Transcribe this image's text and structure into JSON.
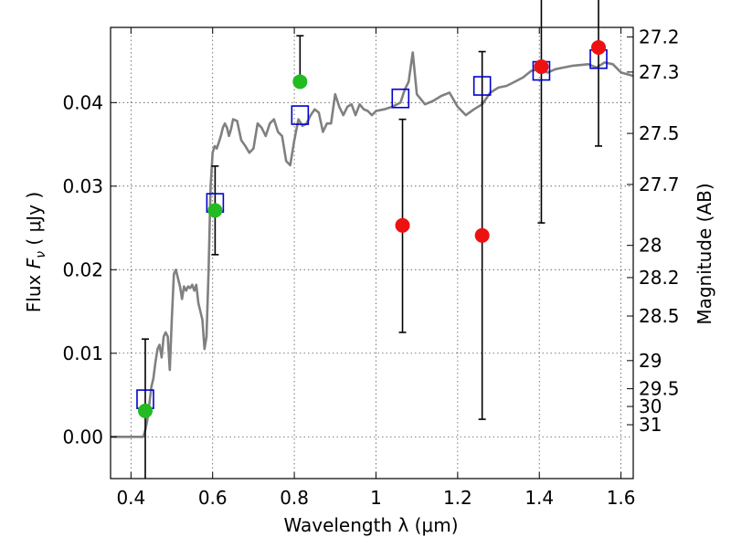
{
  "chart_data": {
    "type": "scatter",
    "xlabel": "Wavelength  λ (μm)",
    "ylabel_left_text": "Flux ",
    "ylabel_left_symbol": "F",
    "ylabel_left_sub": "ν",
    "ylabel_left_unit": "  ( μJy )",
    "ylabel_right": "Magnitude (AB)",
    "xlim": [
      0.35,
      1.63
    ],
    "ylim": [
      -0.005,
      0.049
    ],
    "grid": true,
    "x_ticks": [
      {
        "value": 0.4,
        "label": "0.4"
      },
      {
        "value": 0.6,
        "label": "0.6"
      },
      {
        "value": 0.8,
        "label": "0.8"
      },
      {
        "value": 1.0,
        "label": "1"
      },
      {
        "value": 1.2,
        "label": "1.2"
      },
      {
        "value": 1.4,
        "label": "1.4"
      },
      {
        "value": 1.6,
        "label": "1.6"
      }
    ],
    "y_ticks": [
      {
        "value": 0.0,
        "label": "0.00"
      },
      {
        "value": 0.01,
        "label": "0.01"
      },
      {
        "value": 0.02,
        "label": "0.02"
      },
      {
        "value": 0.03,
        "label": "0.03"
      },
      {
        "value": 0.04,
        "label": "0.04"
      }
    ],
    "mag_ticks": [
      {
        "mag": 27.2,
        "label": "27.2"
      },
      {
        "mag": 27.3,
        "label": "27.3"
      },
      {
        "mag": 27.5,
        "label": "27.5"
      },
      {
        "mag": 27.7,
        "label": "27.7"
      },
      {
        "mag": 28.0,
        "label": "28"
      },
      {
        "mag": 28.2,
        "label": "28.2"
      },
      {
        "mag": 28.5,
        "label": "28.5"
      },
      {
        "mag": 29.0,
        "label": "29"
      },
      {
        "mag": 29.5,
        "label": "29.5"
      },
      {
        "mag": 30.0,
        "label": "30"
      },
      {
        "mag": 31.0,
        "label": "31"
      }
    ],
    "colors": {
      "spectrum": "#808080",
      "model_box": "#0000cc",
      "green_point": "#22bb22",
      "red_point": "#ee1111",
      "error_bar": "#000000"
    },
    "series": [
      {
        "kind": "line",
        "x": [
          0.35,
          0.43,
          0.435,
          0.44,
          0.445,
          0.45,
          0.455,
          0.46,
          0.465,
          0.47,
          0.475,
          0.48,
          0.485,
          0.49,
          0.495,
          0.5,
          0.505,
          0.51,
          0.515,
          0.52,
          0.525,
          0.53,
          0.535,
          0.54,
          0.545,
          0.55,
          0.555,
          0.56,
          0.565,
          0.57,
          0.575,
          0.58,
          0.585,
          0.59,
          0.595,
          0.6,
          0.605,
          0.61,
          0.615,
          0.62,
          0.625,
          0.63,
          0.635,
          0.64,
          0.645,
          0.65,
          0.66,
          0.67,
          0.68,
          0.69,
          0.7,
          0.71,
          0.72,
          0.73,
          0.74,
          0.75,
          0.76,
          0.77,
          0.78,
          0.79,
          0.8,
          0.81,
          0.82,
          0.83,
          0.84,
          0.85,
          0.86,
          0.87,
          0.88,
          0.89,
          0.9,
          0.91,
          0.92,
          0.93,
          0.94,
          0.95,
          0.96,
          0.97,
          0.98,
          0.99,
          1.0,
          1.02,
          1.04,
          1.06,
          1.07,
          1.08,
          1.09,
          1.1,
          1.12,
          1.14,
          1.16,
          1.18,
          1.2,
          1.22,
          1.24,
          1.26,
          1.28,
          1.3,
          1.32,
          1.34,
          1.36,
          1.38,
          1.4,
          1.42,
          1.44,
          1.46,
          1.48,
          1.5,
          1.52,
          1.54,
          1.56,
          1.58,
          1.6,
          1.63
        ],
        "y": [
          0.0,
          0.0,
          0.0008,
          0.002,
          0.004,
          0.006,
          0.007,
          0.009,
          0.0105,
          0.011,
          0.0095,
          0.012,
          0.0125,
          0.012,
          0.008,
          0.014,
          0.0195,
          0.02,
          0.019,
          0.018,
          0.0165,
          0.018,
          0.0175,
          0.018,
          0.0178,
          0.0182,
          0.0175,
          0.0182,
          0.016,
          0.015,
          0.014,
          0.0105,
          0.012,
          0.02,
          0.03,
          0.034,
          0.0348,
          0.0345,
          0.0352,
          0.036,
          0.037,
          0.0375,
          0.037,
          0.036,
          0.0368,
          0.038,
          0.0378,
          0.0355,
          0.0348,
          0.034,
          0.0345,
          0.0375,
          0.037,
          0.036,
          0.0375,
          0.038,
          0.0365,
          0.036,
          0.033,
          0.0325,
          0.0355,
          0.038,
          0.0372,
          0.0375,
          0.0385,
          0.0392,
          0.0388,
          0.0365,
          0.0375,
          0.0375,
          0.041,
          0.0395,
          0.0385,
          0.0395,
          0.0398,
          0.0385,
          0.0398,
          0.0392,
          0.039,
          0.0385,
          0.039,
          0.0392,
          0.0395,
          0.04,
          0.0415,
          0.0425,
          0.046,
          0.041,
          0.0398,
          0.0402,
          0.0408,
          0.0412,
          0.0395,
          0.0385,
          0.0392,
          0.0398,
          0.0412,
          0.0418,
          0.042,
          0.0425,
          0.043,
          0.0438,
          0.044,
          0.0436,
          0.044,
          0.0442,
          0.0444,
          0.0445,
          0.0446,
          0.0442,
          0.0448,
          0.0446,
          0.0436,
          0.0432
        ]
      },
      {
        "kind": "model_boxes",
        "x": [
          0.435,
          0.606,
          0.814,
          1.06,
          1.26,
          1.405,
          1.545
        ],
        "y": [
          0.0045,
          0.028,
          0.0385,
          0.0405,
          0.042,
          0.0438,
          0.0452
        ]
      },
      {
        "kind": "points_green",
        "x": [
          0.435,
          0.606,
          0.814
        ],
        "y": [
          0.0031,
          0.0271,
          0.0425
        ],
        "err_low": [
          0.0083,
          0.0053,
          null
        ],
        "err_high": [
          0.0086,
          0.0053,
          0.0055
        ]
      },
      {
        "kind": "points_red",
        "x": [
          1.065,
          1.26,
          1.405,
          1.545
        ],
        "y": [
          0.0253,
          0.0241,
          0.0443,
          0.0466
        ],
        "err_low": [
          0.0128,
          0.022,
          0.0187,
          0.0118
        ],
        "err_high": [
          0.0127,
          0.022,
          0.0187,
          0.0118
        ]
      }
    ]
  }
}
